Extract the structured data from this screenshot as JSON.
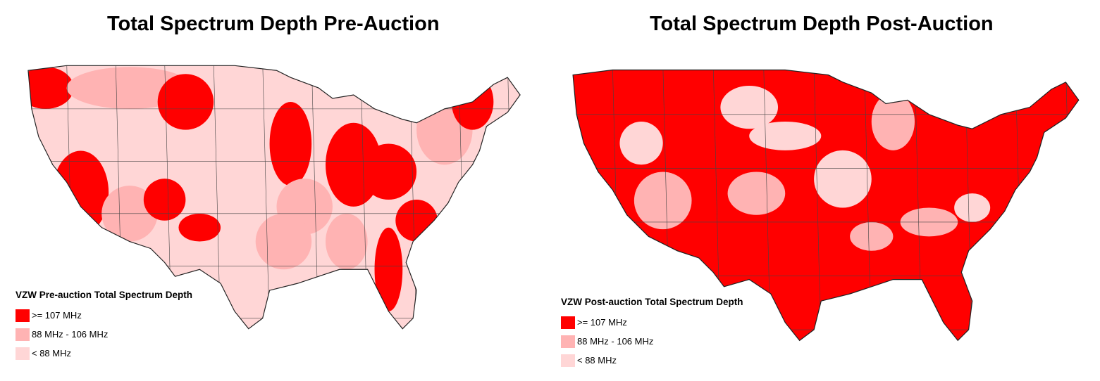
{
  "colors": {
    "high": "#ff0000",
    "mid": "#ffb3b3",
    "low": "#ffd6d6",
    "border": "#333333"
  },
  "left": {
    "title": "Total Spectrum Depth Pre-Auction",
    "legend": {
      "title": "VZW Pre-auction Total Spectrum Depth",
      "items": [
        ">= 107 MHz",
        "88 MHz - 106 MHz",
        "< 88 MHz"
      ]
    }
  },
  "right": {
    "title": "Total Spectrum Depth Post-Auction",
    "legend": {
      "title": "VZW Post-auction Total Spectrum Depth",
      "items": [
        ">= 107 MHz",
        "88 MHz - 106 MHz",
        "< 88 MHz"
      ]
    }
  }
}
